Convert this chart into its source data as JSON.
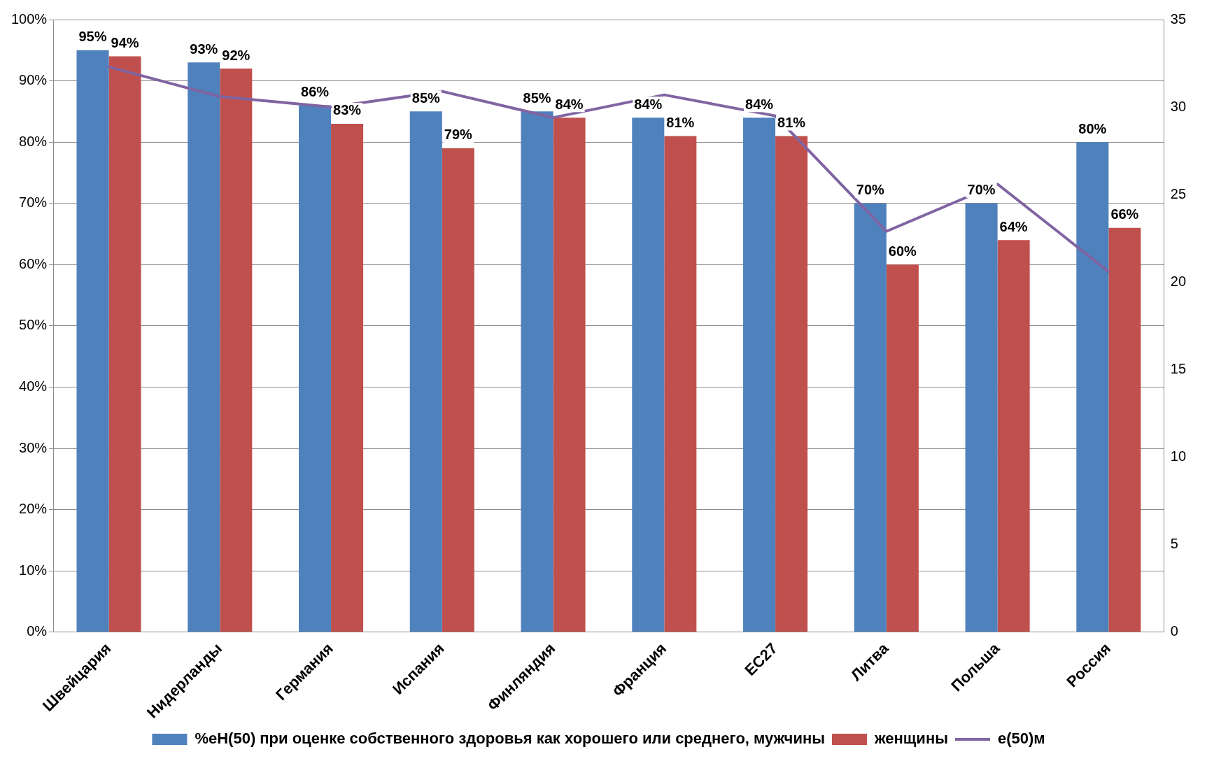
{
  "chart_data": {
    "type": "bar",
    "categories": [
      "Швейцария",
      "Нидерланды",
      "Германия",
      "Испания",
      "Финляндия",
      "Франция",
      "EC27",
      "Литва",
      "Польша",
      "Россия"
    ],
    "series": [
      {
        "name": "%eH(50) при оценке собственного здоровья как хорошего или среднего, мужчины",
        "color": "#4f81bd",
        "values": [
          95,
          93,
          86,
          85,
          85,
          84,
          84,
          70,
          70,
          80
        ],
        "value_labels": [
          "95%",
          "93%",
          "86%",
          "85%",
          "85%",
          "84%",
          "84%",
          "70%",
          "70%",
          "80%"
        ]
      },
      {
        "name": "женщины",
        "color": "#c0504d",
        "values": [
          94,
          92,
          83,
          79,
          84,
          81,
          81,
          60,
          64,
          66
        ],
        "value_labels": [
          "94%",
          "92%",
          "83%",
          "79%",
          "84%",
          "81%",
          "81%",
          "60%",
          "64%",
          "66%"
        ]
      },
      {
        "name": "e(50)м",
        "type": "line",
        "axis": "y2",
        "color": "#8064a2",
        "values": [
          32.3,
          30.6,
          30.0,
          30.9,
          29.4,
          30.7,
          29.5,
          22.9,
          25.6,
          20.6
        ]
      }
    ],
    "ylim": [
      0,
      100
    ],
    "yticks": [
      {
        "value": 0,
        "label": "0%"
      },
      {
        "value": 10,
        "label": "10%"
      },
      {
        "value": 20,
        "label": "20%"
      },
      {
        "value": 30,
        "label": "30%"
      },
      {
        "value": 40,
        "label": "40%"
      },
      {
        "value": 50,
        "label": "50%"
      },
      {
        "value": 60,
        "label": "60%"
      },
      {
        "value": 70,
        "label": "70%"
      },
      {
        "value": 80,
        "label": "80%"
      },
      {
        "value": 90,
        "label": "90%"
      },
      {
        "value": 100,
        "label": "100%"
      }
    ],
    "y2lim": [
      0,
      35
    ],
    "y2ticks": [
      0,
      5,
      10,
      15,
      20,
      25,
      30,
      35
    ],
    "grid": "y",
    "legend": "bottom",
    "marker": "none",
    "line_style": "solid"
  }
}
